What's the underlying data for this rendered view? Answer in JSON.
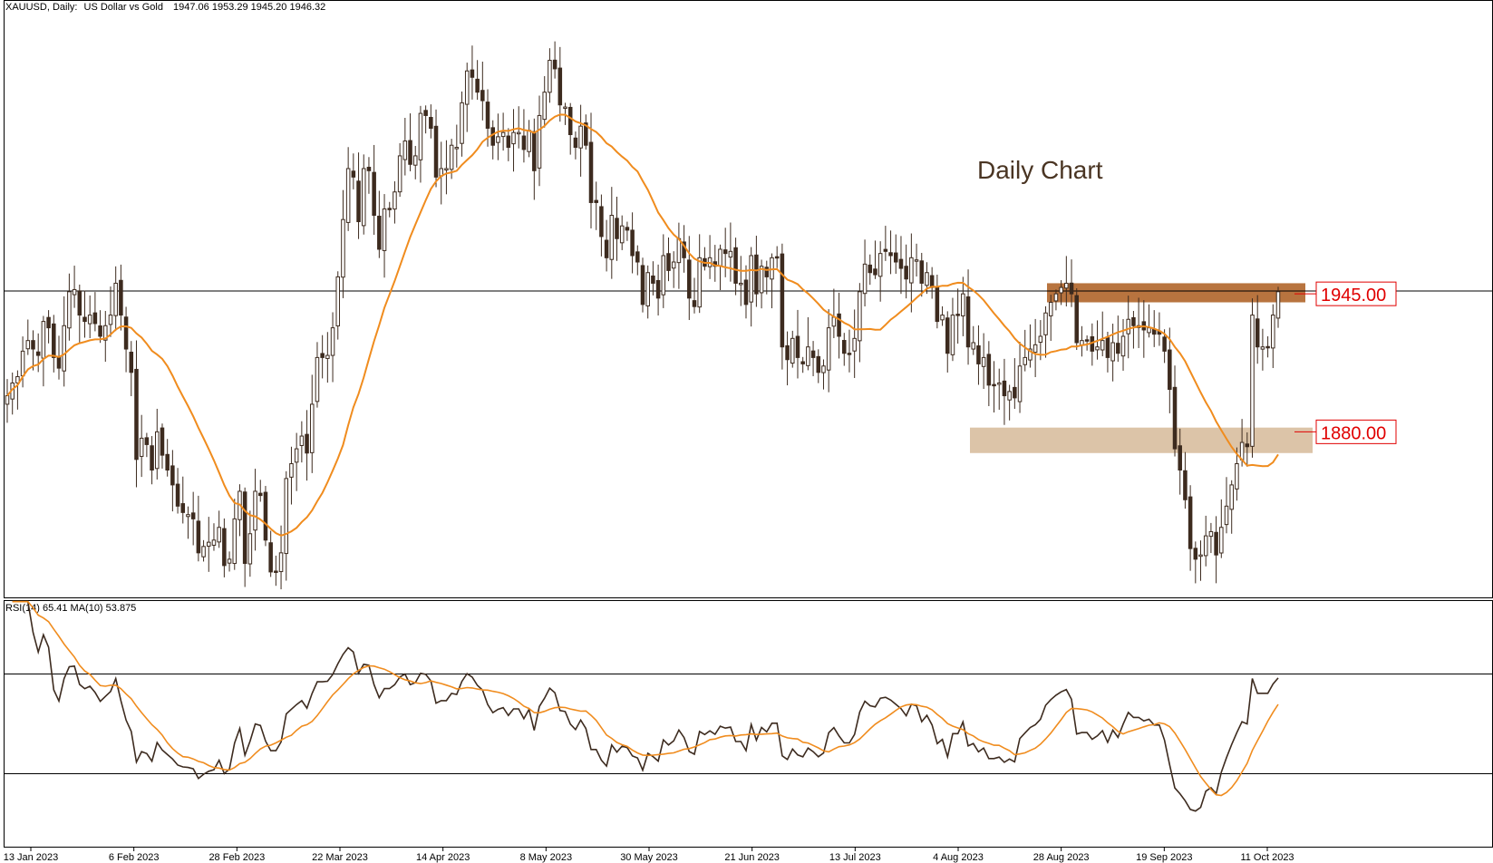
{
  "header": {
    "symbol": "XAUUSD, Daily:",
    "description": "US Dollar vs Gold",
    "ohlc": "1947.06 1953.29 1945.20 1946.32"
  },
  "annotation": "Daily Chart",
  "rsi_header": "RSI(14) 65.41 MA(10) 53.875",
  "colors": {
    "candle_up": "#ffffff",
    "candle_down": "#3d2b1f",
    "ma": "#f08c1e",
    "rsi": "#3d2b1f",
    "resistance_zone": "#b8743f",
    "support_zone": "#dcc4a8",
    "level_text": "#e00000"
  },
  "chart_data": [
    {
      "type": "candlestick",
      "title": "XAUUSD, Daily: US Dollar vs Gold",
      "x_tick_labels": [
        "13 Jan 2023",
        "6 Feb 2023",
        "28 Feb 2023",
        "22 Mar 2023",
        "14 Apr 2023",
        "8 May 2023",
        "30 May 2023",
        "21 Jun 2023",
        "13 Jul 2023",
        "4 Aug 2023",
        "28 Aug 2023",
        "19 Sep 2023",
        "11 Oct 2023"
      ],
      "ylim": [
        1805,
        2080
      ],
      "price_line": 1946.32,
      "levels": [
        {
          "label": "1945.00",
          "value": 1945.0,
          "zone": [
            1941,
            1950
          ]
        },
        {
          "label": "1880.00",
          "value": 1880.0,
          "zone": [
            1870,
            1882
          ]
        }
      ],
      "close": [
        1897,
        1903,
        1906,
        1918,
        1923,
        1919,
        1916,
        1932,
        1929,
        1915,
        1910,
        1930,
        1946,
        1947,
        1935,
        1932,
        1935,
        1931,
        1925,
        1930,
        1935,
        1950,
        1935,
        1919,
        1908,
        1867,
        1877,
        1874,
        1862,
        1880,
        1869,
        1862,
        1855,
        1845,
        1842,
        1841,
        1839,
        1823,
        1826,
        1828,
        1829,
        1835,
        1817,
        1820,
        1839,
        1852,
        1818,
        1832,
        1852,
        1850,
        1829,
        1814,
        1814,
        1823,
        1858,
        1865,
        1872,
        1878,
        1870,
        1893,
        1915,
        1915,
        1916,
        1929,
        1953,
        1980,
        2004,
        2000,
        1979,
        2004,
        2003,
        1982,
        1966,
        1985,
        1985,
        1993,
        2010,
        2017,
        2006,
        2010,
        2030,
        2029,
        2023,
        2000,
        2004,
        2004,
        2015,
        2014,
        2035,
        2050,
        2047,
        2040,
        2036,
        2023,
        2015,
        2019,
        2021,
        2014,
        2021,
        2021,
        2013,
        2022,
        2003,
        2029,
        2040,
        2055,
        2051,
        2034,
        2033,
        2020,
        2014,
        2024,
        2015,
        1988,
        1988,
        1972,
        1962,
        1982,
        1971,
        1977,
        1975,
        1963,
        1960,
        1940,
        1955,
        1950,
        1943,
        1963,
        1956,
        1960,
        1971,
        1962,
        1943,
        1939,
        1962,
        1958,
        1962,
        1958,
        1966,
        1964,
        1965,
        1950,
        1950,
        1940,
        1963,
        1945,
        1958,
        1953,
        1962,
        1962,
        1920,
        1914,
        1924,
        1915,
        1912,
        1920,
        1915,
        1908,
        1911,
        1929,
        1934,
        1925,
        1917,
        1917,
        1924,
        1946,
        1959,
        1955,
        1954,
        1964,
        1965,
        1963,
        1960,
        1957,
        1952,
        1962,
        1961,
        1950,
        1955,
        1948,
        1932,
        1935,
        1917,
        1935,
        1935,
        1945,
        1920,
        1922,
        1912,
        1915,
        1902,
        1902,
        1903,
        1897,
        1899,
        1896,
        1911,
        1915,
        1919,
        1921,
        1925,
        1936,
        1941,
        1945,
        1948,
        1950,
        1945,
        1922,
        1923,
        1923,
        1918,
        1920,
        1923,
        1915,
        1922,
        1917,
        1925,
        1933,
        1930,
        1930,
        1928,
        1929,
        1926,
        1926,
        1918,
        1900,
        1872,
        1862,
        1848,
        1825,
        1820,
        1822,
        1831,
        1833,
        1822,
        1835,
        1845,
        1855,
        1865,
        1875,
        1873,
        1935,
        1920,
        1920,
        1920,
        1935,
        1946
      ],
      "ma_period": 20,
      "ma_label": ""
    },
    {
      "type": "line",
      "title": "RSI(14) 65.41 MA(10) 53.875",
      "ylim": [
        0,
        100
      ],
      "reference_lines": [
        70,
        30
      ],
      "series": [
        {
          "name": "RSI(14)",
          "last": 65.41
        },
        {
          "name": "MA(10)",
          "last": 53.875
        }
      ]
    }
  ]
}
